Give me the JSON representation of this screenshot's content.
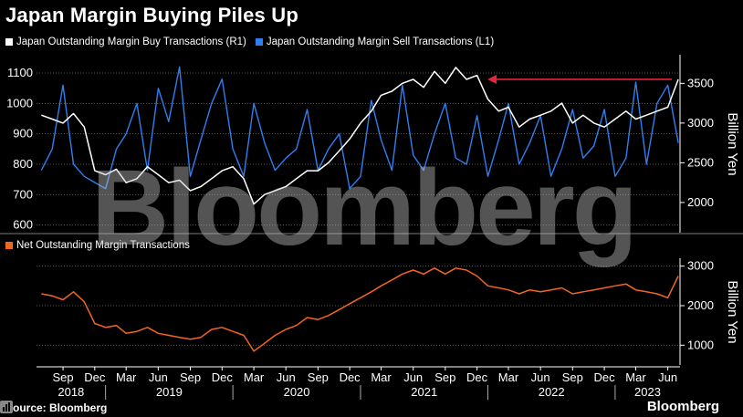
{
  "title": "Japan Margin Buying Piles Up",
  "source": "Source: Bloomberg",
  "brand": "Bloomberg",
  "watermark": "Bloomberg",
  "colors": {
    "buy": "#ffffff",
    "sell": "#2f7ff0",
    "net": "#f26522",
    "arrow": "#e0263d",
    "grid": "#5a5a5a"
  },
  "chart_data": [
    {
      "type": "line",
      "legend": [
        {
          "name": "Japan Outstanding Margin Buy Transactions (R1)",
          "color": "#ffffff"
        },
        {
          "name": "Japan Outstanding Margin Sell Transactions (L1)",
          "color": "#2f7ff0"
        }
      ],
      "left_axis": {
        "ylim": [
          575,
          1160
        ],
        "ticks": [
          "600",
          "700",
          "800",
          "900",
          "1000",
          "1100"
        ]
      },
      "right_axis": {
        "ylim": [
          1620,
          3860
        ],
        "ticks": [
          "2000",
          "2500",
          "3000",
          "3500"
        ],
        "label": "Billion Yen"
      },
      "annotation": "arrow at about 3550 (R1) pointing left to the late-2021 peak",
      "series": [
        {
          "name": "Japan Outstanding Margin Buy Transactions (R1)",
          "axis": "right",
          "x": [
            "2018-07",
            "2018-08",
            "2018-09",
            "2018-10",
            "2018-11",
            "2018-12",
            "2019-01",
            "2019-02",
            "2019-03",
            "2019-04",
            "2019-05",
            "2019-06",
            "2019-07",
            "2019-08",
            "2019-09",
            "2019-10",
            "2019-11",
            "2019-12",
            "2020-01",
            "2020-02",
            "2020-03",
            "2020-04",
            "2020-05",
            "2020-06",
            "2020-07",
            "2020-08",
            "2020-09",
            "2020-10",
            "2020-11",
            "2020-12",
            "2021-01",
            "2021-02",
            "2021-03",
            "2021-04",
            "2021-05",
            "2021-06",
            "2021-07",
            "2021-08",
            "2021-09",
            "2021-10",
            "2021-11",
            "2021-12",
            "2022-01",
            "2022-02",
            "2022-03",
            "2022-04",
            "2022-05",
            "2022-06",
            "2022-07",
            "2022-08",
            "2022-09",
            "2022-10",
            "2022-11",
            "2022-12",
            "2023-01",
            "2023-02",
            "2023-03",
            "2023-04",
            "2023-05",
            "2023-06",
            "2023-07"
          ],
          "values": [
            3100,
            3050,
            3000,
            3120,
            2950,
            2400,
            2350,
            2420,
            2250,
            2300,
            2450,
            2350,
            2250,
            2280,
            2150,
            2200,
            2300,
            2400,
            2450,
            2300,
            1980,
            2100,
            2150,
            2200,
            2300,
            2400,
            2400,
            2500,
            2650,
            2800,
            3000,
            3150,
            3350,
            3400,
            3500,
            3550,
            3450,
            3650,
            3500,
            3700,
            3550,
            3600,
            3300,
            3150,
            3200,
            2950,
            3050,
            3100,
            3150,
            3250,
            3000,
            3100,
            3000,
            2950,
            3050,
            3150,
            3050,
            3100,
            3150,
            3200,
            3550
          ]
        },
        {
          "name": "Japan Outstanding Margin Sell Transactions (L1)",
          "axis": "left",
          "x": [
            "2018-07",
            "2018-08",
            "2018-09",
            "2018-10",
            "2018-11",
            "2018-12",
            "2019-01",
            "2019-02",
            "2019-03",
            "2019-04",
            "2019-05",
            "2019-06",
            "2019-07",
            "2019-08",
            "2019-09",
            "2019-10",
            "2019-11",
            "2019-12",
            "2020-01",
            "2020-02",
            "2020-03",
            "2020-04",
            "2020-05",
            "2020-06",
            "2020-07",
            "2020-08",
            "2020-09",
            "2020-10",
            "2020-11",
            "2020-12",
            "2021-01",
            "2021-02",
            "2021-03",
            "2021-04",
            "2021-05",
            "2021-06",
            "2021-07",
            "2021-08",
            "2021-09",
            "2021-10",
            "2021-11",
            "2021-12",
            "2022-01",
            "2022-02",
            "2022-03",
            "2022-04",
            "2022-05",
            "2022-06",
            "2022-07",
            "2022-08",
            "2022-09",
            "2022-10",
            "2022-11",
            "2022-12",
            "2023-01",
            "2023-02",
            "2023-03",
            "2023-04",
            "2023-05",
            "2023-06",
            "2023-07"
          ],
          "values": [
            780,
            850,
            1060,
            800,
            760,
            740,
            720,
            850,
            900,
            1000,
            780,
            1050,
            940,
            1120,
            760,
            880,
            1000,
            1080,
            850,
            760,
            1000,
            870,
            780,
            820,
            850,
            980,
            780,
            850,
            900,
            720,
            760,
            1010,
            880,
            780,
            1060,
            830,
            780,
            900,
            1000,
            820,
            800,
            960,
            760,
            880,
            1000,
            800,
            870,
            960,
            760,
            850,
            980,
            820,
            860,
            980,
            760,
            820,
            1070,
            800,
            1000,
            1060,
            870
          ]
        }
      ]
    },
    {
      "type": "area",
      "legend": [
        {
          "name": "Net Outstanding Margin Transactions",
          "color": "#f26522"
        }
      ],
      "right_axis": {
        "ylim": [
          500,
          3200
        ],
        "ticks": [
          "1000",
          "2000",
          "3000"
        ],
        "label": "Billion Yen"
      },
      "series": [
        {
          "name": "Net Outstanding Margin Transactions",
          "axis": "right",
          "x": [
            "2018-07",
            "2018-08",
            "2018-09",
            "2018-10",
            "2018-11",
            "2018-12",
            "2019-01",
            "2019-02",
            "2019-03",
            "2019-04",
            "2019-05",
            "2019-06",
            "2019-07",
            "2019-08",
            "2019-09",
            "2019-10",
            "2019-11",
            "2019-12",
            "2020-01",
            "2020-02",
            "2020-03",
            "2020-04",
            "2020-05",
            "2020-06",
            "2020-07",
            "2020-08",
            "2020-09",
            "2020-10",
            "2020-11",
            "2020-12",
            "2021-01",
            "2021-02",
            "2021-03",
            "2021-04",
            "2021-05",
            "2021-06",
            "2021-07",
            "2021-08",
            "2021-09",
            "2021-10",
            "2021-11",
            "2021-12",
            "2022-01",
            "2022-02",
            "2022-03",
            "2022-04",
            "2022-05",
            "2022-06",
            "2022-07",
            "2022-08",
            "2022-09",
            "2022-10",
            "2022-11",
            "2022-12",
            "2023-01",
            "2023-02",
            "2023-03",
            "2023-04",
            "2023-05",
            "2023-06",
            "2023-07"
          ],
          "values": [
            2300,
            2250,
            2150,
            2350,
            2100,
            1550,
            1450,
            1500,
            1300,
            1350,
            1450,
            1300,
            1250,
            1200,
            1150,
            1200,
            1400,
            1450,
            1350,
            1250,
            850,
            1050,
            1250,
            1400,
            1500,
            1700,
            1650,
            1750,
            1900,
            2050,
            2200,
            2350,
            2500,
            2650,
            2800,
            2900,
            2800,
            2950,
            2800,
            2950,
            2900,
            2750,
            2500,
            2450,
            2400,
            2300,
            2400,
            2350,
            2400,
            2450,
            2300,
            2350,
            2400,
            2450,
            2500,
            2550,
            2400,
            2350,
            2300,
            2200,
            2750
          ]
        }
      ]
    }
  ],
  "x_axis": {
    "months": [
      "Sep",
      "Dec",
      "Mar",
      "Jun",
      "Sep",
      "Dec",
      "Mar",
      "Jun",
      "Sep",
      "Dec",
      "Mar",
      "Jun",
      "Sep",
      "Dec",
      "Mar",
      "Jun",
      "Sep",
      "Dec",
      "Mar",
      "Jun"
    ],
    "years": [
      "2018",
      "2019",
      "2020",
      "2021",
      "2022",
      "2023"
    ]
  }
}
